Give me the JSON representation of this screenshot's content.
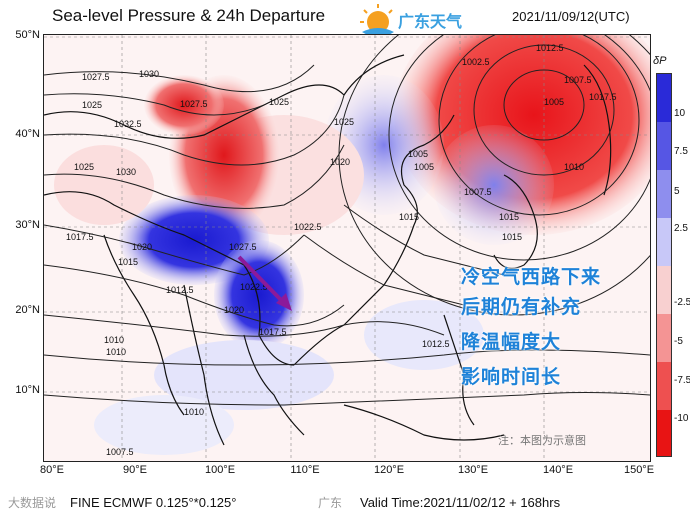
{
  "header": {
    "title": "Sea-level Pressure & 24h Departure",
    "datetime": "2021/11/09/12(UTC)",
    "logo_text": "广东天气"
  },
  "map": {
    "lat_labels": [
      "50°N",
      "40°N",
      "30°N",
      "20°N",
      "10°N"
    ],
    "lon_labels": [
      "80°E",
      "90°E",
      "100°E",
      "110°E",
      "120°E",
      "130°E",
      "140°E",
      "150°E"
    ],
    "isobar_labels": [
      "1030",
      "1027.5",
      "1025",
      "1032.5",
      "1027.5",
      "1025",
      "1030",
      "1025",
      "1022.5",
      "1020",
      "1017.5",
      "1015",
      "1012.5",
      "1010",
      "1007.5",
      "1005",
      "1002.5",
      "1012.5",
      "1007.5",
      "1005",
      "1017.5",
      "1010",
      "1015",
      "1020",
      "1022.5",
      "1027.5",
      "1025",
      "1012.5",
      "1015",
      "1010",
      "1010",
      "1007.5",
      "1005",
      "1020",
      "1017.5",
      "1015"
    ],
    "arrow_color": "#8b1a9a"
  },
  "colorbar": {
    "title": "δP",
    "ticks": [
      "10",
      "7.5",
      "5",
      "2.5",
      "-2.5",
      "-5",
      "-7.5",
      "-10"
    ]
  },
  "annotation": {
    "lines": [
      "冷空气西路下来",
      "后期仍有补充",
      "降温幅度大",
      "影响时间长"
    ],
    "color": "#1e82d8"
  },
  "note": "注：本图为示意图",
  "footer": {
    "model": "FINE ECMWF 0.125°*0.125°",
    "valid": "Valid Time:2021/11/02/12 + 168hrs",
    "watermark_left": "大数据说",
    "watermark_mid": "广东"
  }
}
